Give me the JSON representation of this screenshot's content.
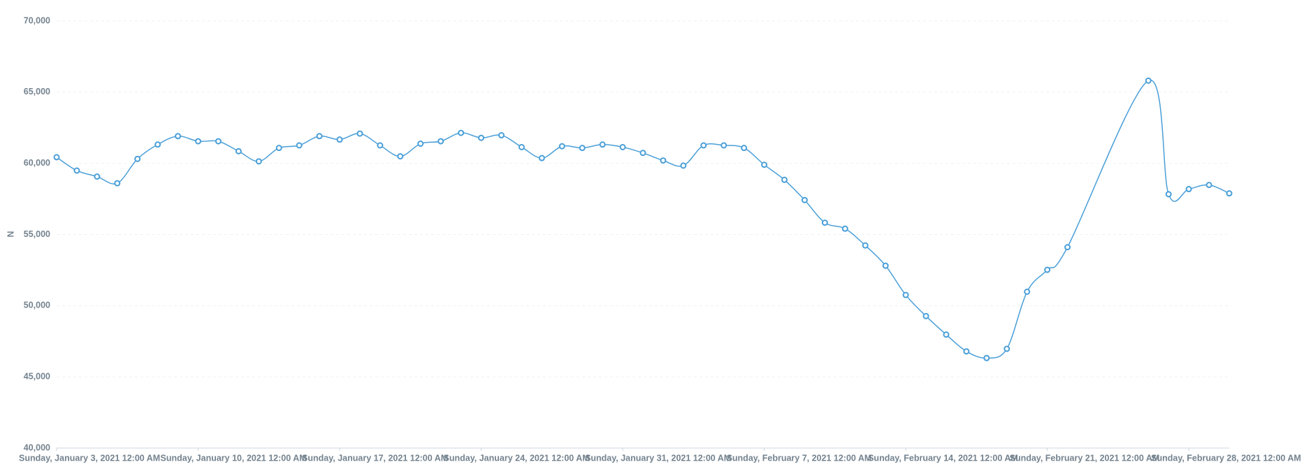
{
  "chart_data": {
    "type": "line",
    "y_label": "N",
    "x": [
      "2021-01-03",
      "2021-01-04",
      "2021-01-05",
      "2021-01-06",
      "2021-01-07",
      "2021-01-08",
      "2021-01-09",
      "2021-01-10",
      "2021-01-11",
      "2021-01-12",
      "2021-01-13",
      "2021-01-14",
      "2021-01-15",
      "2021-01-16",
      "2021-01-17",
      "2021-01-18",
      "2021-01-19",
      "2021-01-20",
      "2021-01-21",
      "2021-01-22",
      "2021-01-23",
      "2021-01-24",
      "2021-01-25",
      "2021-01-26",
      "2021-01-27",
      "2021-01-28",
      "2021-01-29",
      "2021-01-30",
      "2021-01-31",
      "2021-02-01",
      "2021-02-02",
      "2021-02-03",
      "2021-02-04",
      "2021-02-05",
      "2021-02-06",
      "2021-02-07",
      "2021-02-08",
      "2021-02-09",
      "2021-02-10",
      "2021-02-11",
      "2021-02-12",
      "2021-02-13",
      "2021-02-14",
      "2021-02-15",
      "2021-02-16",
      "2021-02-17",
      "2021-02-18",
      "2021-02-19",
      "2021-02-20",
      "2021-02-21",
      "2021-02-22",
      "2021-02-26",
      "2021-02-27",
      "2021-02-28",
      "2021-03-01",
      "2021-03-02"
    ],
    "series": [
      {
        "color": "#4a9fd8",
        "values": [
          60430,
          59490,
          59070,
          58600,
          60310,
          61320,
          61910,
          61550,
          61550,
          60850,
          60140,
          61080,
          61260,
          61910,
          61670,
          62090,
          61260,
          60490,
          61380,
          61550,
          62140,
          61790,
          61970,
          61140,
          60370,
          61200,
          61080,
          61320,
          61140,
          60730,
          60200,
          59840,
          61260,
          61260,
          61080,
          59900,
          58840,
          57420,
          55830,
          55410,
          54230,
          52810,
          50750,
          49270,
          47970,
          46790,
          46320,
          46970,
          50980,
          52520,
          54110,
          65810,
          57830,
          58190,
          58480,
          57890
        ]
      }
    ],
    "xlim": [
      "2021-01-03",
      "2021-03-02"
    ],
    "xticks": [
      {
        "value": "2021-01-03",
        "label": "Sunday, January 3, 2021 12:00 AM"
      },
      {
        "value": "2021-01-10",
        "label": "Sunday, January 10, 2021 12:00 AM"
      },
      {
        "value": "2021-01-17",
        "label": "Sunday, January 17, 2021 12:00 AM"
      },
      {
        "value": "2021-01-24",
        "label": "Sunday, January 24, 2021 12:00 AM"
      },
      {
        "value": "2021-01-31",
        "label": "Sunday, January 31, 2021 12:00 AM"
      },
      {
        "value": "2021-02-07",
        "label": "Sunday, February 7, 2021 12:00 AM"
      },
      {
        "value": "2021-02-14",
        "label": "Sunday, February 14, 2021 12:00 AM"
      },
      {
        "value": "2021-02-21",
        "label": "Sunday, February 21, 2021 12:00 AM"
      },
      {
        "value": "2021-02-28",
        "label": "Sunday, February 28, 2021 12:00 AM"
      }
    ],
    "ylim": [
      40000,
      70000
    ],
    "yticks": [
      {
        "value": 40000,
        "label": "40,000"
      },
      {
        "value": 45000,
        "label": "45,000"
      },
      {
        "value": 50000,
        "label": "50,000"
      },
      {
        "value": 55000,
        "label": "55,000"
      },
      {
        "value": 60000,
        "label": "60,000"
      },
      {
        "value": 65000,
        "label": "65,000"
      },
      {
        "value": 70000,
        "label": "70,000"
      }
    ],
    "grid": true
  }
}
